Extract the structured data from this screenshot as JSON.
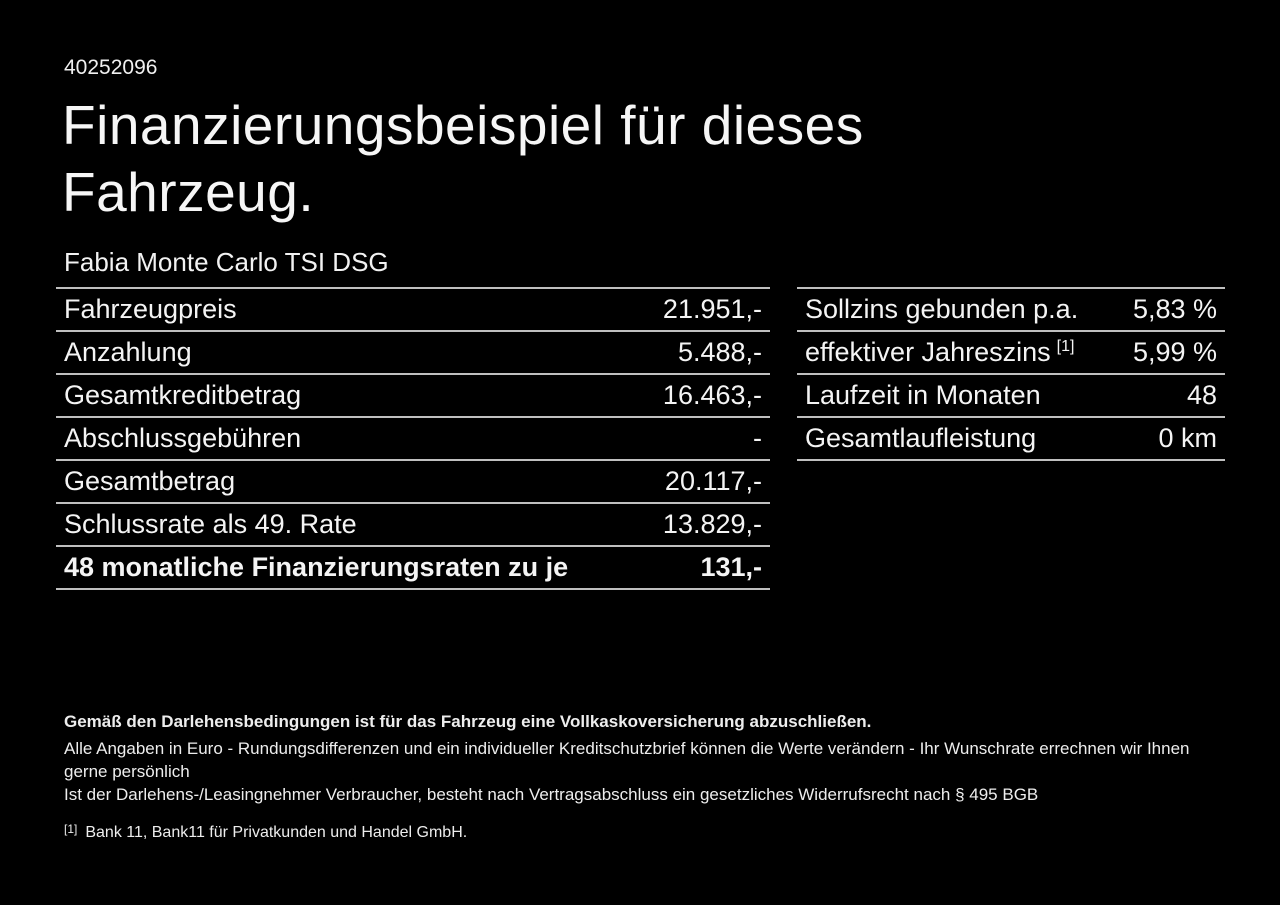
{
  "id_number": "40252096",
  "title": {
    "line1": "Finanzierungsbeispiel für dieses",
    "line2": "Fahrzeug."
  },
  "vehicle_name": "Fabia Monte Carlo TSI DSG",
  "left_table": {
    "rows": [
      {
        "label": "Fahrzeugpreis",
        "value": "21.951,-"
      },
      {
        "label": "Anzahlung",
        "value": "5.488,-"
      },
      {
        "label": "Gesamtkreditbetrag",
        "value": "16.463,-"
      },
      {
        "label": "Abschlussgebühren",
        "value": "-"
      },
      {
        "label": "Gesamtbetrag",
        "value": "20.117,-"
      },
      {
        "label": "Schlussrate als 49. Rate",
        "value": "13.829,-"
      },
      {
        "label": "48 monatliche Finanzierungsraten zu je",
        "value": "131,-"
      }
    ]
  },
  "right_table": {
    "rows": [
      {
        "label": "Sollzins gebunden p.a.",
        "sup": "",
        "value": "5,83 %"
      },
      {
        "label": "effektiver Jahreszins",
        "sup": "[1]",
        "value": "5,99 %"
      },
      {
        "label": "Laufzeit in Monaten",
        "sup": "",
        "value": "48"
      },
      {
        "label": "Gesamtlaufleistung",
        "sup": "",
        "value": "0 km"
      }
    ]
  },
  "footer": {
    "bold_note": "Gemäß den Darlehensbedingungen ist für das Fahrzeug eine Vollkaskoversicherung abzuschließen.",
    "note1": "Alle Angaben in Euro - Rundungsdifferenzen und ein individueller Kreditschutzbrief können die Werte verändern - Ihr Wunschrate errechnen wir Ihnen gerne persönlich",
    "note2": "Ist der Darlehens-/Leasingnehmer Verbraucher, besteht nach Vertragsabschluss ein gesetzliches Widerrufsrecht nach § 495 BGB",
    "footnote_marker": "[1]",
    "footnote_text": "Bank 11, Bank11 für Privatkunden und Handel GmbH."
  },
  "colors": {
    "background": "#000000",
    "text": "#f4f4f4",
    "divider": "#bfbfbf"
  }
}
